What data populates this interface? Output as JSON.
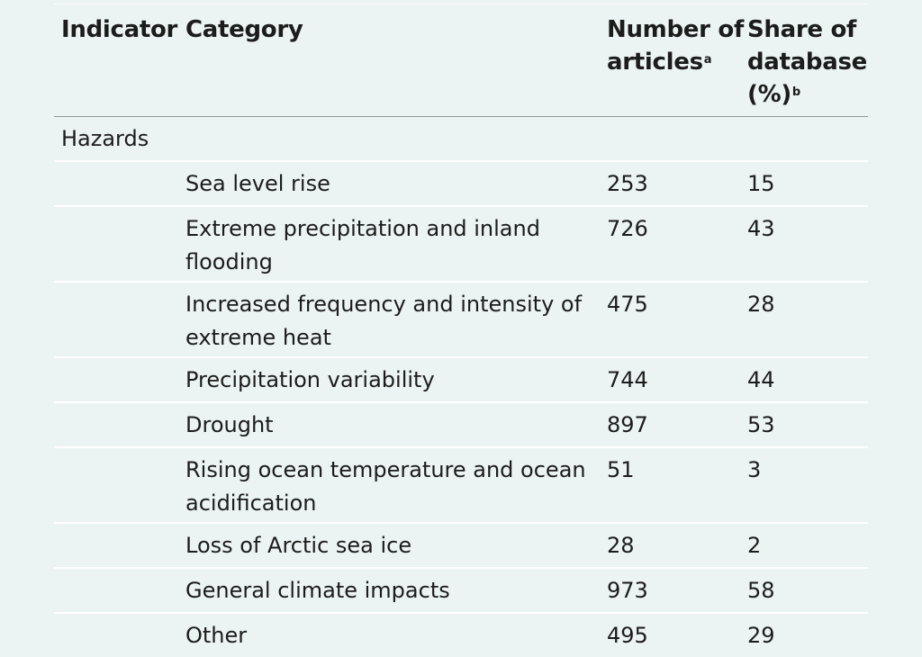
{
  "header": {
    "indicator": "Indicator",
    "category": "Category",
    "number_line1": "Number of",
    "number_line2": "articles",
    "number_sup": "a",
    "share_line1": "Share of",
    "share_line2": "database",
    "share_line3": "(%)",
    "share_sup": "b"
  },
  "section": {
    "label": "Hazards"
  },
  "rows": [
    {
      "category_line1": "Sea level rise",
      "category_line2": "",
      "number": "253",
      "share": "15"
    },
    {
      "category_line1": "Extreme precipitation and inland",
      "category_line2": "flooding",
      "number": "726",
      "share": "43"
    },
    {
      "category_line1": "Increased frequency and intensity of",
      "category_line2": "extreme heat",
      "number": "475",
      "share": "28"
    },
    {
      "category_line1": "Precipitation variability",
      "category_line2": "",
      "number": "744",
      "share": "44"
    },
    {
      "category_line1": "Drought",
      "category_line2": "",
      "number": "897",
      "share": "53"
    },
    {
      "category_line1": "Rising ocean temperature and ocean",
      "category_line2": "acidification",
      "number": "51",
      "share": "3"
    },
    {
      "category_line1": "Loss of Arctic sea ice",
      "category_line2": "",
      "number": "28",
      "share": "2"
    },
    {
      "category_line1": "General climate impacts",
      "category_line2": "",
      "number": "973",
      "share": "58"
    },
    {
      "category_line1": "Other",
      "category_line2": "",
      "number": "495",
      "share": "29"
    }
  ]
}
